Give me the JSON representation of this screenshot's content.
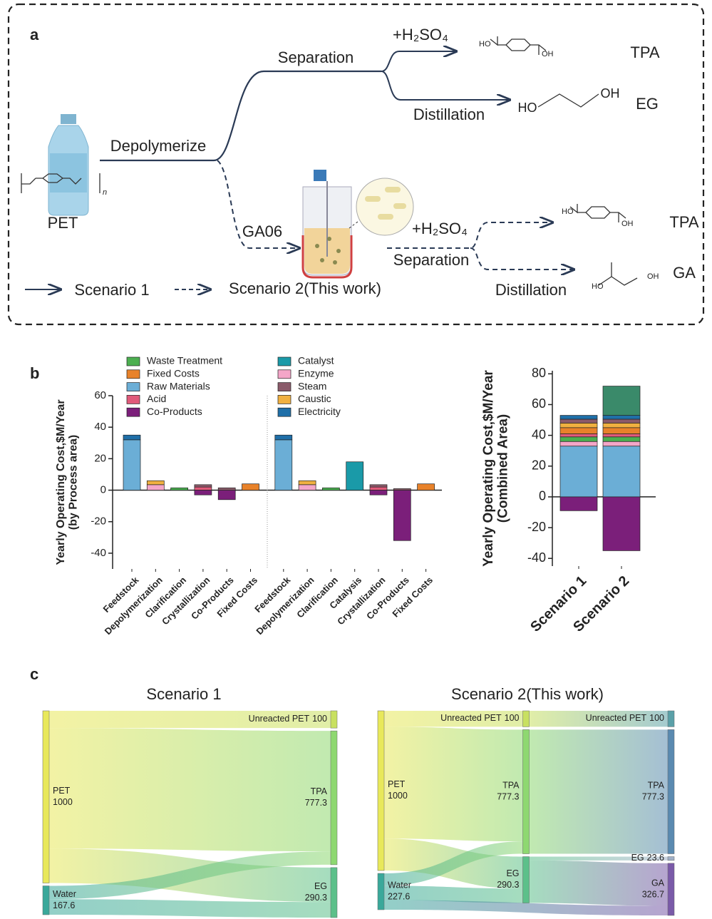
{
  "panel_a": {
    "label": "a",
    "depolymerize": "Depolymerize",
    "pet": "PET",
    "polymer_n": "n",
    "separation_1": "Separation",
    "acid_1": "+H₂SO₄",
    "distillation_1": "Distillation",
    "tpa_1": "TPA",
    "tpa_1_atoms": [
      "HO",
      "OH"
    ],
    "eg": "EG",
    "eg_atoms": [
      "HO",
      "OH"
    ],
    "strain": "GA06",
    "acid_2": "+H₂SO₄",
    "separation_2": "Separation",
    "distillation_2": "Distillation",
    "tpa_2": "TPA",
    "tpa_2_atoms": [
      "HO",
      "OH"
    ],
    "ga": "GA",
    "ga_atoms": [
      "HO",
      "OH"
    ],
    "legend_1": "Scenario 1",
    "legend_2": "Scenario 2(This work)"
  },
  "panel_b_label": "b",
  "panel_c_label": "c",
  "chart_data": [
    {
      "type": "stacked_bar",
      "ylabel": [
        "Yearly Operating Cost,$M/Year",
        "(by Process area)"
      ],
      "categories": [
        "Feedstock",
        "Depolymerization",
        "Clarification",
        "Crystallization",
        "Co-Products",
        "Fixed Costs",
        "Feedstock",
        "Depolymerization",
        "Clarification",
        "Catalysis",
        "Crystallization",
        "Co-Products",
        "Fixed Costs"
      ],
      "ylim": [
        -50,
        60
      ],
      "yticks": [
        60,
        40,
        20,
        0,
        -20,
        -40
      ],
      "series": [
        {
          "name": "Waste Treatment",
          "color": "#4caf50",
          "values": [
            null,
            null,
            1.5,
            null,
            null,
            null,
            null,
            null,
            1.5,
            null,
            null,
            null,
            null
          ]
        },
        {
          "name": "Fixed Costs",
          "color": "#e8822a",
          "values": [
            null,
            null,
            null,
            null,
            null,
            4,
            null,
            null,
            null,
            null,
            null,
            null,
            4
          ]
        },
        {
          "name": "Raw Materials",
          "color": "#6baed6",
          "values": [
            32,
            null,
            null,
            null,
            null,
            null,
            32,
            null,
            null,
            null,
            null,
            null,
            null
          ]
        },
        {
          "name": "Acid",
          "color": "#e05a7a",
          "values": [
            null,
            null,
            null,
            2,
            null,
            null,
            null,
            null,
            null,
            null,
            2,
            null,
            null
          ]
        },
        {
          "name": "Co-Products",
          "color": "#7b1f7a",
          "values": [
            null,
            null,
            null,
            -3,
            -6,
            null,
            null,
            null,
            null,
            null,
            -3,
            -32,
            null
          ]
        },
        {
          "name": "Catalyst",
          "color": "#1a9aa8",
          "values": [
            null,
            null,
            null,
            null,
            null,
            null,
            null,
            null,
            null,
            18,
            null,
            null,
            null
          ]
        },
        {
          "name": "Enzyme",
          "color": "#f4a6c8",
          "values": [
            null,
            3.5,
            null,
            null,
            null,
            null,
            null,
            3.5,
            null,
            null,
            null,
            null,
            null
          ]
        },
        {
          "name": "Steam",
          "color": "#8a5a6a",
          "values": [
            null,
            null,
            null,
            1.5,
            1.5,
            null,
            null,
            null,
            null,
            null,
            1.5,
            1,
            null
          ]
        },
        {
          "name": "Caustic",
          "color": "#f0b040",
          "values": [
            null,
            2.5,
            null,
            null,
            null,
            null,
            null,
            2.5,
            null,
            null,
            null,
            null,
            null
          ]
        },
        {
          "name": "Electricity",
          "color": "#1f6fa8",
          "values": [
            3,
            null,
            null,
            null,
            null,
            null,
            3,
            null,
            null,
            null,
            null,
            null,
            null
          ]
        }
      ]
    },
    {
      "type": "stacked_bar",
      "ylabel": [
        "Yearly Operating Cost,$M/Year",
        "(Combined Area)"
      ],
      "categories": [
        "Scenario 1",
        "Scenario 2"
      ],
      "ylim": [
        -45,
        82
      ],
      "yticks": [
        80,
        60,
        40,
        20,
        0,
        -20,
        -40
      ],
      "series": [
        {
          "color": "#6baed6",
          "values": [
            33,
            33
          ]
        },
        {
          "color": "#f4a6c8",
          "values": [
            3,
            3
          ]
        },
        {
          "color": "#4caf50",
          "values": [
            3,
            3
          ]
        },
        {
          "color": "#e05a7a",
          "values": [
            2,
            2
          ]
        },
        {
          "color": "#e8822a",
          "values": [
            4,
            4
          ]
        },
        {
          "color": "#f0b040",
          "values": [
            3,
            3
          ]
        },
        {
          "color": "#8a5a6a",
          "values": [
            2.5,
            2.5
          ]
        },
        {
          "color": "#1f6fa8",
          "values": [
            2.5,
            2.5
          ]
        },
        {
          "color": "#3a8a6a",
          "values": [
            null,
            19
          ]
        },
        {
          "color": "#7b1f7a",
          "values": [
            -9,
            -35
          ]
        }
      ]
    },
    {
      "type": "sankey",
      "title": "Scenario 1",
      "nodes": [
        {
          "name": "PET",
          "value": 1000,
          "color": "#e8e85a"
        },
        {
          "name": "Water",
          "value": 167.6,
          "color": "#3aa89a"
        },
        {
          "name": "Unreacted PET",
          "value": 100,
          "color": "#c8e060"
        },
        {
          "name": "TPA",
          "value": 777.3,
          "color": "#8ed870"
        },
        {
          "name": "EG",
          "value": 290.3,
          "color": "#5cc08a"
        }
      ],
      "links": [
        {
          "source": 0,
          "target": 2,
          "value": 100
        },
        {
          "source": 0,
          "target": 3,
          "value": 700
        },
        {
          "source": 0,
          "target": 4,
          "value": 200
        },
        {
          "source": 1,
          "target": 3,
          "value": 77.3
        },
        {
          "source": 1,
          "target": 4,
          "value": 90.3
        }
      ]
    },
    {
      "type": "sankey",
      "title": "Scenario 2(This work)",
      "nodes": [
        {
          "name": "PET",
          "value": 1000,
          "color": "#e8e85a"
        },
        {
          "name": "Water",
          "value": 227.6,
          "color": "#3aa89a"
        },
        {
          "name": "Unreacted PET",
          "value": 100,
          "color": "#c8e060"
        },
        {
          "name": "TPA",
          "value": 777.3,
          "color": "#8ed870"
        },
        {
          "name": "EG",
          "value": 290.3,
          "color": "#5cc08a"
        },
        {
          "name": "Unreacted PET",
          "value": 100,
          "color": "#5aa0a8"
        },
        {
          "name": "TPA",
          "value": 777.3,
          "color": "#5a8ab0"
        },
        {
          "name": "EG",
          "value": 23.6,
          "color": "#a0b0c8"
        },
        {
          "name": "GA",
          "value": 326.7,
          "color": "#7a5aa8"
        }
      ],
      "links": [
        {
          "source": 0,
          "target": 2,
          "value": 100
        },
        {
          "source": 0,
          "target": 3,
          "value": 700
        },
        {
          "source": 0,
          "target": 4,
          "value": 200
        },
        {
          "source": 1,
          "target": 3,
          "value": 77.3
        },
        {
          "source": 1,
          "target": 4,
          "value": 90.3
        },
        {
          "source": 1,
          "target": 8,
          "value": 60
        },
        {
          "source": 2,
          "target": 5,
          "value": 100
        },
        {
          "source": 3,
          "target": 6,
          "value": 777.3
        },
        {
          "source": 4,
          "target": 7,
          "value": 23.6
        },
        {
          "source": 4,
          "target": 8,
          "value": 266.7
        }
      ]
    }
  ]
}
